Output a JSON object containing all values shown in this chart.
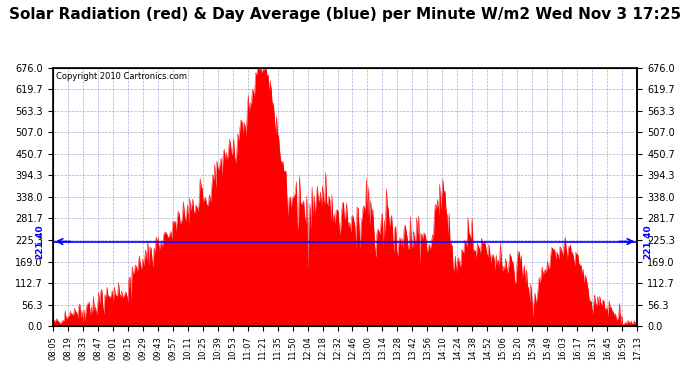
{
  "title": "Solar Radiation (red) & Day Average (blue) per Minute W/m2 Wed Nov 3 17:25",
  "copyright": "Copyright 2010 Cartronics.com",
  "y_max": 676.0,
  "y_min": 0.0,
  "y_ticks": [
    0.0,
    56.3,
    112.7,
    169.0,
    225.3,
    281.7,
    338.0,
    394.3,
    450.7,
    507.0,
    563.3,
    619.7,
    676.0
  ],
  "day_average": 221.4,
  "fill_color": "#FF0000",
  "line_color": "#FF0000",
  "avg_line_color": "#0000FF",
  "bg_color": "#FFFFFF",
  "grid_color": "#8888CC",
  "title_fontsize": 11,
  "x_labels": [
    "08:05",
    "08:19",
    "08:33",
    "08:47",
    "09:01",
    "09:15",
    "09:29",
    "09:43",
    "09:57",
    "10:11",
    "10:25",
    "10:39",
    "10:53",
    "11:07",
    "11:21",
    "11:35",
    "11:50",
    "12:04",
    "12:18",
    "12:32",
    "12:46",
    "13:00",
    "13:14",
    "13:28",
    "13:42",
    "13:56",
    "14:10",
    "14:24",
    "14:38",
    "14:52",
    "15:06",
    "15:20",
    "15:34",
    "15:49",
    "16:03",
    "16:17",
    "16:31",
    "16:45",
    "16:59",
    "17:13"
  ],
  "num_points": 560
}
